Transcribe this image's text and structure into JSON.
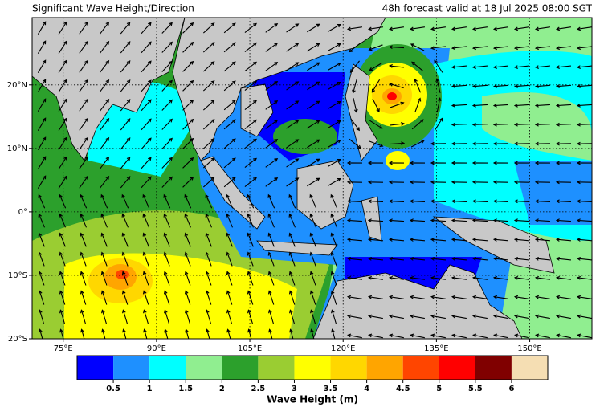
{
  "header": {
    "title": "Significant Wave Height/Direction",
    "forecast": "48h forecast valid at 18 Jul 2025 08:00 SGT"
  },
  "map": {
    "lonlim": [
      70,
      160
    ],
    "latlim": [
      -20,
      30.6
    ],
    "lon_ticks": [
      {
        "value": 75,
        "label": "75°E"
      },
      {
        "value": 90,
        "label": "90°E"
      },
      {
        "value": 105,
        "label": "105°E"
      },
      {
        "value": 120,
        "label": "120°E"
      },
      {
        "value": 135,
        "label": "135°E"
      },
      {
        "value": 150,
        "label": "150°E"
      }
    ],
    "lat_ticks": [
      {
        "value": 20,
        "label": "20°N"
      },
      {
        "value": 10,
        "label": "10°N"
      },
      {
        "value": 0,
        "label": "0°"
      },
      {
        "value": -10,
        "label": "10°S"
      },
      {
        "value": -20,
        "label": "20°S"
      }
    ]
  },
  "colorbar": {
    "label": "Wave Height (m)",
    "range": [
      0,
      6.5
    ],
    "colors": [
      "#0000ff",
      "#1e90ff",
      "#00ffff",
      "#90ee90",
      "#2ca02c",
      "#9acd32",
      "#ffff00",
      "#ffd700",
      "#ffa500",
      "#ff4500",
      "#ff0000",
      "#800000",
      "#f5deb3"
    ],
    "ticks": [
      0.5,
      1,
      1.5,
      2,
      2.5,
      3,
      3.5,
      4,
      4.5,
      5,
      5.5,
      6
    ]
  }
}
